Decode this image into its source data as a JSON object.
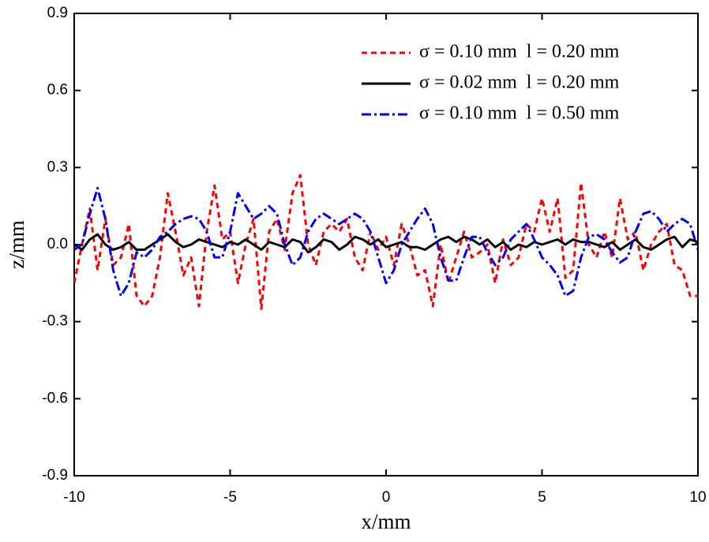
{
  "chart_data": {
    "type": "line",
    "x_label": "x/mm",
    "y_label": "z/mm",
    "x": [
      -10,
      -9.75,
      -9.5,
      -9.25,
      -9,
      -8.75,
      -8.5,
      -8.25,
      -8,
      -7.75,
      -7.5,
      -7.25,
      -7,
      -6.75,
      -6.5,
      -6.25,
      -6,
      -5.75,
      -5.5,
      -5.25,
      -5,
      -4.75,
      -4.5,
      -4.25,
      -4,
      -3.75,
      -3.5,
      -3.25,
      -3,
      -2.75,
      -2.5,
      -2.25,
      -2,
      -1.75,
      -1.5,
      -1.25,
      -1,
      -0.75,
      -0.5,
      -0.25,
      0,
      0.25,
      0.5,
      0.75,
      1,
      1.25,
      1.5,
      1.75,
      2,
      2.25,
      2.5,
      2.75,
      3,
      3.25,
      3.5,
      3.75,
      4,
      4.25,
      4.5,
      4.75,
      5,
      5.25,
      5.5,
      5.75,
      6,
      6.25,
      6.5,
      6.75,
      7,
      7.25,
      7.5,
      7.75,
      8,
      8.25,
      8.5,
      8.75,
      9,
      9.25,
      9.5,
      9.75,
      10
    ],
    "series": [
      {
        "name": "σ = 0.10 mm  l = 0.20 mm",
        "color": "#ff0000",
        "dash": "dashed",
        "values": [
          -0.15,
          0.0,
          0.14,
          -0.1,
          0.1,
          -0.08,
          -0.05,
          0.08,
          -0.2,
          -0.24,
          -0.2,
          -0.05,
          0.2,
          0.05,
          -0.12,
          -0.05,
          -0.24,
          0.05,
          0.23,
          0.02,
          0.05,
          -0.15,
          0.0,
          0.1,
          -0.25,
          0.05,
          0.1,
          -0.02,
          0.2,
          0.27,
          0.0,
          -0.08,
          0.05,
          0.08,
          0.05,
          0.1,
          -0.05,
          -0.1,
          0.05,
          -0.02,
          0.03,
          -0.08,
          0.08,
          0.0,
          -0.12,
          -0.1,
          -0.24,
          0.0,
          -0.15,
          -0.05,
          0.05,
          -0.05,
          -0.03,
          0.0,
          -0.15,
          0.02,
          -0.08,
          -0.05,
          0.08,
          0.05,
          0.18,
          0.05,
          0.18,
          -0.13,
          -0.1,
          0.24,
          0.0,
          -0.05,
          0.05,
          -0.05,
          0.18,
          0.02,
          0.05,
          -0.1,
          0.0,
          0.05,
          0.08,
          -0.08,
          -0.1,
          -0.2,
          -0.2
        ]
      },
      {
        "name": "σ = 0.02 mm  l = 0.20 mm",
        "color": "#000000",
        "dash": "solid",
        "values": [
          0.0,
          -0.02,
          0.02,
          0.04,
          0.0,
          -0.02,
          -0.01,
          0.01,
          -0.02,
          -0.02,
          0.0,
          0.02,
          0.04,
          0.01,
          -0.01,
          0.0,
          0.02,
          0.01,
          0.0,
          -0.01,
          0.01,
          0.0,
          0.02,
          0.0,
          -0.02,
          0.01,
          0.0,
          -0.01,
          0.02,
          0.01,
          -0.03,
          -0.01,
          0.02,
          0.01,
          -0.02,
          0.0,
          0.03,
          0.02,
          0.0,
          0.02,
          -0.01,
          0.0,
          0.01,
          -0.01,
          -0.01,
          -0.02,
          0.0,
          0.02,
          0.03,
          0.01,
          0.03,
          0.02,
          0.0,
          0.02,
          -0.01,
          0.01,
          -0.02,
          0.0,
          -0.01,
          0.01,
          0.0,
          0.01,
          0.02,
          0.0,
          0.02,
          0.01,
          0.01,
          0.0,
          -0.01,
          0.01,
          -0.02,
          0.0,
          0.02,
          -0.01,
          -0.02,
          0.0,
          0.02,
          0.03,
          -0.01,
          0.02,
          0.01
        ]
      },
      {
        "name": "σ = 0.10 mm  l = 0.50 mm",
        "color": "#0000ff",
        "dash": "dashdot",
        "values": [
          -0.02,
          0.0,
          0.12,
          0.22,
          0.1,
          -0.1,
          -0.2,
          -0.15,
          -0.03,
          -0.05,
          -0.02,
          0.03,
          0.05,
          0.08,
          0.1,
          0.11,
          0.1,
          0.05,
          -0.05,
          -0.05,
          0.05,
          0.2,
          0.15,
          0.1,
          0.12,
          0.15,
          0.12,
          0.0,
          -0.08,
          -0.05,
          0.05,
          0.1,
          0.12,
          0.1,
          0.08,
          0.1,
          0.12,
          0.1,
          0.05,
          -0.05,
          -0.15,
          -0.1,
          0.0,
          0.05,
          0.1,
          0.14,
          0.08,
          -0.05,
          -0.14,
          -0.14,
          -0.05,
          0.03,
          0.03,
          -0.03,
          -0.08,
          -0.05,
          0.02,
          0.05,
          0.08,
          0.02,
          -0.05,
          -0.08,
          -0.12,
          -0.2,
          -0.18,
          -0.05,
          0.03,
          0.04,
          0.02,
          -0.03,
          -0.07,
          -0.05,
          0.05,
          0.12,
          0.13,
          0.1,
          0.05,
          0.08,
          0.1,
          0.08,
          -0.02
        ]
      }
    ],
    "xlim": [
      -10,
      10
    ],
    "ylim": [
      -0.9,
      0.9
    ],
    "xticks": [
      -10,
      -5,
      0,
      5,
      10
    ],
    "yticks": [
      -0.9,
      -0.6,
      -0.3,
      {
        "value": 0,
        "label": "0.0"
      },
      0.3,
      0.6,
      0.9
    ],
    "legend": "upper right",
    "grid": false
  }
}
